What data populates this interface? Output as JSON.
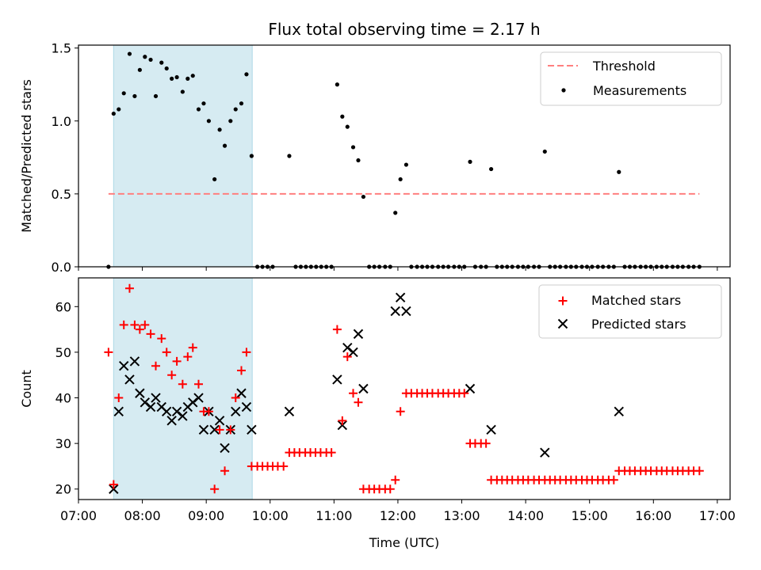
{
  "chart_data": [
    {
      "type": "scatter",
      "title": "Flux total observing time = 2.17 h",
      "xlabel": "",
      "ylabel": "Matched/Predicted stars",
      "xlim": [
        7.0,
        17.2
      ],
      "ylim": [
        0.0,
        1.52
      ],
      "yticks": [
        0.0,
        0.5,
        1.0,
        1.5
      ],
      "ytick_labels": [
        "0.0",
        "0.5",
        "1.0",
        "1.5"
      ],
      "shaded_span": [
        7.55,
        9.72
      ],
      "colors": {
        "threshold": "#ff7f7f",
        "measurements": "#000000",
        "shade": "#add8e6"
      },
      "legend_position": "top-right",
      "series": [
        {
          "name": "Threshold",
          "kind": "dashed-line",
          "x": [
            7.47,
            16.72
          ],
          "y": [
            0.5,
            0.5
          ]
        },
        {
          "name": "Measurements",
          "kind": "points",
          "x": [
            7.47,
            7.55,
            7.63,
            7.71,
            7.8,
            7.88,
            7.96,
            8.04,
            8.13,
            8.21,
            8.3,
            8.38,
            8.46,
            8.54,
            8.63,
            8.71,
            8.79,
            8.88,
            8.96,
            9.04,
            9.13,
            9.21,
            9.29,
            9.38,
            9.46,
            9.55,
            9.63,
            9.71,
            9.8,
            9.88,
            9.96,
            10.04,
            10.3,
            10.4,
            10.48,
            10.56,
            10.64,
            10.72,
            10.8,
            10.88,
            10.96,
            11.05,
            11.13,
            11.21,
            11.3,
            11.38,
            11.46,
            11.55,
            11.63,
            11.71,
            11.8,
            11.88,
            11.96,
            12.04,
            12.13,
            12.21,
            12.3,
            12.38,
            12.46,
            12.54,
            12.63,
            12.71,
            12.79,
            12.88,
            12.96,
            13.04,
            13.13,
            13.21,
            13.3,
            13.38,
            13.46,
            13.55,
            13.63,
            13.71,
            13.79,
            13.88,
            13.96,
            14.04,
            14.13,
            14.21,
            14.3,
            14.38,
            14.46,
            14.54,
            14.63,
            14.71,
            14.79,
            14.88,
            14.96,
            15.04,
            15.13,
            15.21,
            15.3,
            15.38,
            15.46,
            15.55,
            15.63,
            15.71,
            15.8,
            15.88,
            15.96,
            16.05,
            16.13,
            16.21,
            16.3,
            16.38,
            16.46,
            16.55,
            16.63,
            16.72
          ],
          "y": [
            0,
            1.05,
            1.08,
            1.19,
            1.46,
            1.17,
            1.35,
            1.44,
            1.42,
            1.17,
            1.4,
            1.36,
            1.29,
            1.3,
            1.2,
            1.29,
            1.31,
            1.08,
            1.12,
            1.0,
            0.6,
            0.94,
            0.83,
            1.0,
            1.08,
            1.12,
            1.32,
            0.76,
            0,
            0,
            0,
            0,
            0.76,
            0,
            0,
            0,
            0,
            0,
            0,
            0,
            0,
            1.25,
            1.03,
            0.96,
            0.82,
            0.73,
            0.48,
            0,
            0,
            0,
            0,
            0,
            0.37,
            0.6,
            0.7,
            0,
            0,
            0,
            0,
            0,
            0,
            0,
            0,
            0,
            0,
            0,
            0.72,
            0,
            0,
            0,
            0.67,
            0,
            0,
            0,
            0,
            0,
            0,
            0,
            0,
            0,
            0.79,
            0,
            0,
            0,
            0,
            0,
            0,
            0,
            0,
            0,
            0,
            0,
            0,
            0,
            0.65,
            0,
            0,
            0,
            0,
            0,
            0,
            0,
            0,
            0,
            0,
            0,
            0,
            0,
            0,
            0
          ]
        }
      ]
    },
    {
      "type": "scatter",
      "title": "",
      "xlabel": "Time (UTC)",
      "ylabel": "Count",
      "xlim": [
        7.0,
        17.2
      ],
      "ylim": [
        17.7,
        66.3
      ],
      "yticks": [
        20,
        30,
        40,
        50,
        60
      ],
      "ytick_labels": [
        "20",
        "30",
        "40",
        "50",
        "60"
      ],
      "xticks": [
        7,
        8,
        9,
        10,
        11,
        12,
        13,
        14,
        15,
        16,
        17
      ],
      "xtick_labels": [
        "07:00",
        "08:00",
        "09:00",
        "10:00",
        "11:00",
        "12:00",
        "13:00",
        "14:00",
        "15:00",
        "16:00",
        "17:00"
      ],
      "shaded_span": [
        7.55,
        9.72
      ],
      "colors": {
        "matched": "#ff0000",
        "predicted": "#000000",
        "shade": "#add8e6"
      },
      "legend_position": "top-right",
      "series": [
        {
          "name": "Matched stars",
          "marker": "plus",
          "x": [
            7.47,
            7.55,
            7.63,
            7.71,
            7.8,
            7.88,
            7.96,
            8.04,
            8.13,
            8.21,
            8.3,
            8.38,
            8.46,
            8.54,
            8.63,
            8.71,
            8.79,
            8.88,
            8.96,
            9.04,
            9.13,
            9.21,
            9.29,
            9.38,
            9.46,
            9.55,
            9.63,
            9.71,
            9.8,
            9.88,
            9.96,
            10.04,
            10.12,
            10.21,
            10.3,
            10.38,
            10.46,
            10.55,
            10.63,
            10.71,
            10.79,
            10.88,
            10.96,
            11.05,
            11.13,
            11.21,
            11.3,
            11.38,
            11.46,
            11.55,
            11.63,
            11.71,
            11.8,
            11.88,
            11.96,
            12.04,
            12.13,
            12.21,
            12.3,
            12.38,
            12.46,
            12.54,
            12.63,
            12.71,
            12.79,
            12.88,
            12.96,
            13.04,
            13.13,
            13.21,
            13.3,
            13.38,
            13.46,
            13.55,
            13.63,
            13.71,
            13.79,
            13.88,
            13.96,
            14.04,
            14.13,
            14.21,
            14.3,
            14.38,
            14.46,
            14.54,
            14.63,
            14.71,
            14.79,
            14.88,
            14.96,
            15.04,
            15.13,
            15.21,
            15.3,
            15.38,
            15.46,
            15.55,
            15.63,
            15.71,
            15.8,
            15.88,
            15.96,
            16.05,
            16.13,
            16.21,
            16.3,
            16.38,
            16.46,
            16.55,
            16.63,
            16.72
          ],
          "y": [
            50,
            21,
            40,
            56,
            64,
            56,
            55,
            56,
            54,
            47,
            53,
            50,
            45,
            48,
            43,
            49,
            51,
            43,
            37,
            37,
            20,
            33,
            24,
            33,
            40,
            46,
            50,
            25,
            25,
            25,
            25,
            25,
            25,
            25,
            28,
            28,
            28,
            28,
            28,
            28,
            28,
            28,
            28,
            55,
            35,
            49,
            41,
            39,
            20,
            20,
            20,
            20,
            20,
            20,
            22,
            37,
            41,
            41,
            41,
            41,
            41,
            41,
            41,
            41,
            41,
            41,
            41,
            41,
            30,
            30,
            30,
            30,
            22,
            22,
            22,
            22,
            22,
            22,
            22,
            22,
            22,
            22,
            22,
            22,
            22,
            22,
            22,
            22,
            22,
            22,
            22,
            22,
            22,
            22,
            22,
            22,
            24,
            24,
            24,
            24,
            24,
            24,
            24,
            24,
            24,
            24,
            24,
            24,
            24,
            24,
            24,
            24
          ]
        },
        {
          "name": "Predicted stars",
          "marker": "x",
          "x": [
            7.55,
            7.63,
            7.71,
            7.8,
            7.88,
            7.96,
            8.04,
            8.13,
            8.21,
            8.3,
            8.38,
            8.46,
            8.54,
            8.63,
            8.71,
            8.79,
            8.88,
            8.96,
            9.04,
            9.13,
            9.21,
            9.29,
            9.38,
            9.46,
            9.55,
            9.63,
            9.71,
            10.3,
            11.05,
            11.13,
            11.21,
            11.3,
            11.38,
            11.46,
            11.96,
            12.04,
            12.13,
            13.13,
            13.46,
            14.3,
            15.46
          ],
          "y": [
            20,
            37,
            47,
            44,
            48,
            41,
            39,
            38,
            40,
            38,
            37,
            35,
            37,
            36,
            38,
            39,
            40,
            33,
            37,
            33,
            35,
            29,
            33,
            37,
            41,
            38,
            33,
            37,
            44,
            34,
            51,
            50,
            54,
            42,
            59,
            62,
            59,
            42,
            33,
            28,
            37
          ]
        }
      ]
    }
  ]
}
